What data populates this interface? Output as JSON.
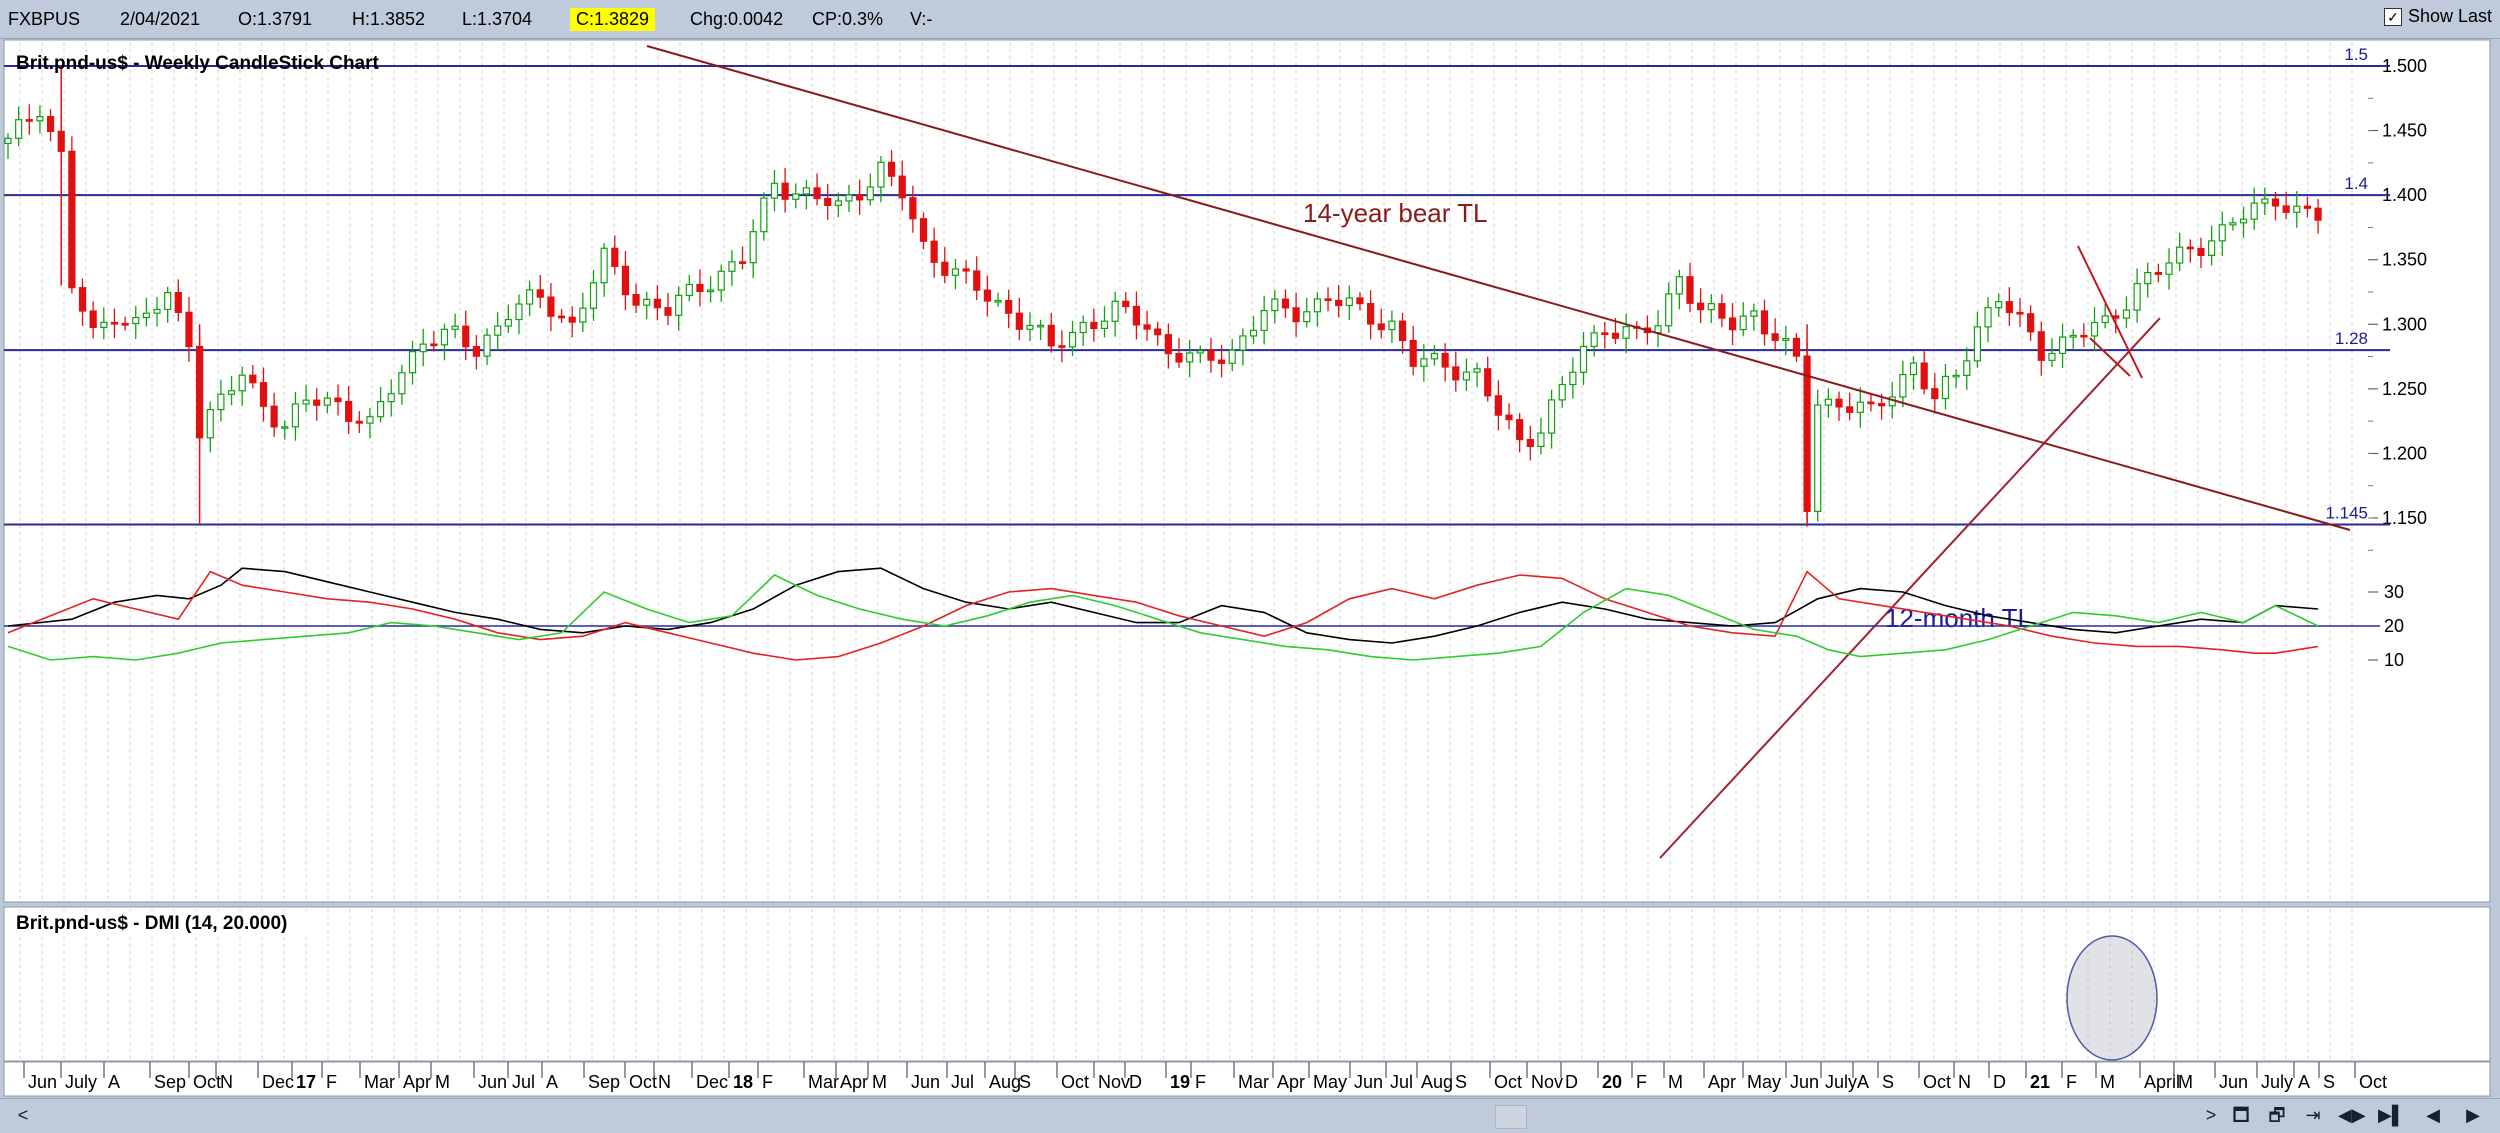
{
  "header": {
    "symbol": "FXBPUS",
    "date": "2/04/2021",
    "open": "O:1.3791",
    "high": "H:1.3852",
    "low": "L:1.3704",
    "close": "C:1.3829",
    "change": "Chg:0.0042",
    "change_pct": "CP:0.3%",
    "volume": "V:-",
    "show_last_label": "Show Last",
    "show_last_checked": true
  },
  "chart_data": [
    {
      "type": "candlestick",
      "title": "Brit.pnd-us$ - Weekly CandleStick Chart",
      "ylim": [
        1.115,
        1.53
      ],
      "yticks": [
        "1.500",
        "1.450",
        "1.400",
        "1.350",
        "1.300",
        "1.250",
        "1.200",
        "1.150"
      ],
      "x_labels": [
        "Jun",
        "July",
        "A",
        "Sep",
        "Oct",
        "N",
        "Dec",
        "17",
        "F",
        "Mar",
        "Apr",
        "M",
        "Jun",
        "Jul",
        "A",
        "Sep",
        "Oct",
        "N",
        "Dec",
        "18",
        "F",
        "Mar",
        "Apr",
        "M",
        "Jun",
        "Jul",
        "Aug",
        "S",
        "Oct",
        "Nov",
        "D",
        "19",
        "F",
        "Mar",
        "Apr",
        "May",
        "Jun",
        "Jul",
        "Aug",
        "S",
        "Oct",
        "Nov",
        "D",
        "20",
        "F",
        "M",
        "Apr",
        "May",
        "Jun",
        "July",
        "A",
        "S",
        "Oct",
        "N",
        "D",
        "21",
        "F",
        "M",
        "April",
        "M",
        "Jun",
        "July",
        "A",
        "S",
        "Oct"
      ],
      "bold_labels": [
        "17",
        "18",
        "19",
        "20",
        "21"
      ],
      "horizontal_lines": [
        {
          "value": 1.5,
          "label": "1.5"
        },
        {
          "value": 1.4,
          "label": "1.4"
        },
        {
          "value": 1.28,
          "label": "1.28"
        },
        {
          "value": 1.145,
          "label": "1.145"
        }
      ],
      "annotations": [
        {
          "text": "14-year bear TL",
          "color": "#8b1a1a"
        },
        {
          "text": "12-month TL",
          "color": "#1a1a9a"
        }
      ],
      "close_path": [
        [
          0,
          1.44
        ],
        [
          3,
          1.47
        ],
        [
          5,
          1.43
        ],
        [
          6,
          1.33
        ],
        [
          8,
          1.29
        ],
        [
          10,
          1.31
        ],
        [
          12,
          1.3
        ],
        [
          15,
          1.32
        ],
        [
          17,
          1.29
        ],
        [
          18,
          1.22
        ],
        [
          20,
          1.24
        ],
        [
          22,
          1.26
        ],
        [
          24,
          1.24
        ],
        [
          26,
          1.22
        ],
        [
          28,
          1.24
        ],
        [
          31,
          1.24
        ],
        [
          34,
          1.22
        ],
        [
          36,
          1.25
        ],
        [
          39,
          1.29
        ],
        [
          42,
          1.29
        ],
        [
          44,
          1.28
        ],
        [
          47,
          1.31
        ],
        [
          50,
          1.32
        ],
        [
          53,
          1.3
        ],
        [
          56,
          1.35
        ],
        [
          59,
          1.32
        ],
        [
          62,
          1.31
        ],
        [
          65,
          1.33
        ],
        [
          69,
          1.35
        ],
        [
          72,
          1.41
        ],
        [
          75,
          1.4
        ],
        [
          78,
          1.39
        ],
        [
          82,
          1.42
        ],
        [
          84,
          1.4
        ],
        [
          86,
          1.36
        ],
        [
          89,
          1.34
        ],
        [
          92,
          1.32
        ],
        [
          96,
          1.3
        ],
        [
          98,
          1.28
        ],
        [
          101,
          1.3
        ],
        [
          104,
          1.31
        ],
        [
          107,
          1.3
        ],
        [
          109,
          1.28
        ],
        [
          112,
          1.27
        ],
        [
          115,
          1.28
        ],
        [
          118,
          1.31
        ],
        [
          121,
          1.31
        ],
        [
          124,
          1.32
        ],
        [
          127,
          1.31
        ],
        [
          130,
          1.3
        ],
        [
          132,
          1.27
        ],
        [
          135,
          1.27
        ],
        [
          138,
          1.26
        ],
        [
          140,
          1.23
        ],
        [
          142,
          1.21
        ],
        [
          144,
          1.22
        ],
        [
          146,
          1.25
        ],
        [
          148,
          1.28
        ],
        [
          150,
          1.3
        ],
        [
          153,
          1.29
        ],
        [
          155,
          1.3
        ],
        [
          157,
          1.34
        ],
        [
          159,
          1.31
        ],
        [
          162,
          1.3
        ],
        [
          164,
          1.31
        ],
        [
          166,
          1.29
        ],
        [
          168,
          1.27
        ],
        [
          169,
          1.16
        ],
        [
          170,
          1.24
        ],
        [
          172,
          1.24
        ],
        [
          175,
          1.23
        ],
        [
          177,
          1.25
        ],
        [
          179,
          1.27
        ],
        [
          181,
          1.24
        ],
        [
          183,
          1.26
        ],
        [
          185,
          1.3
        ],
        [
          187,
          1.32
        ],
        [
          189,
          1.3
        ],
        [
          191,
          1.28
        ],
        [
          194,
          1.29
        ],
        [
          197,
          1.3
        ],
        [
          200,
          1.33
        ],
        [
          202,
          1.34
        ],
        [
          205,
          1.36
        ],
        [
          208,
          1.37
        ],
        [
          211,
          1.39
        ],
        [
          213,
          1.4
        ],
        [
          215,
          1.385
        ],
        [
          217,
          1.383
        ]
      ]
    },
    {
      "type": "line",
      "title": "Brit.pnd-us$ - DMI (14, 20.000)",
      "ylim": [
        5,
        37
      ],
      "yticks": [
        "30",
        "20",
        "10"
      ],
      "reference_line": 20,
      "series": [
        {
          "color": "#000000",
          "points": [
            [
              0,
              20
            ],
            [
              6,
              22
            ],
            [
              10,
              27
            ],
            [
              14,
              29
            ],
            [
              17,
              28
            ],
            [
              20,
              32
            ],
            [
              22,
              37
            ],
            [
              26,
              36
            ],
            [
              30,
              33
            ],
            [
              34,
              30
            ],
            [
              38,
              27
            ],
            [
              42,
              24
            ],
            [
              46,
              22
            ],
            [
              50,
              19
            ],
            [
              54,
              18
            ],
            [
              58,
              20
            ],
            [
              62,
              19
            ],
            [
              66,
              21
            ],
            [
              70,
              25
            ],
            [
              74,
              32
            ],
            [
              78,
              36
            ],
            [
              82,
              38
            ],
            [
              86,
              31
            ],
            [
              90,
              27
            ],
            [
              94,
              25
            ],
            [
              98,
              27
            ],
            [
              102,
              24
            ],
            [
              106,
              21
            ],
            [
              110,
              21
            ],
            [
              114,
              26
            ],
            [
              118,
              24
            ],
            [
              122,
              18
            ],
            [
              126,
              16
            ],
            [
              130,
              15
            ],
            [
              134,
              17
            ],
            [
              138,
              20
            ],
            [
              142,
              24
            ],
            [
              146,
              27
            ],
            [
              150,
              25
            ],
            [
              154,
              22
            ],
            [
              158,
              21
            ],
            [
              162,
              20
            ],
            [
              166,
              21
            ],
            [
              170,
              28
            ],
            [
              174,
              31
            ],
            [
              178,
              30
            ],
            [
              182,
              26
            ],
            [
              186,
              23
            ],
            [
              190,
              21
            ],
            [
              194,
              19
            ],
            [
              198,
              18
            ],
            [
              202,
              20
            ],
            [
              206,
              22
            ],
            [
              210,
              21
            ],
            [
              213,
              26
            ],
            [
              217,
              25
            ]
          ]
        },
        {
          "color": "#e32222",
          "points": [
            [
              0,
              18
            ],
            [
              4,
              23
            ],
            [
              8,
              28
            ],
            [
              12,
              25
            ],
            [
              16,
              22
            ],
            [
              19,
              36
            ],
            [
              22,
              32
            ],
            [
              26,
              30
            ],
            [
              30,
              28
            ],
            [
              34,
              27
            ],
            [
              38,
              25
            ],
            [
              42,
              22
            ],
            [
              46,
              18
            ],
            [
              50,
              16
            ],
            [
              54,
              17
            ],
            [
              58,
              21
            ],
            [
              62,
              18
            ],
            [
              66,
              15
            ],
            [
              70,
              12
            ],
            [
              74,
              10
            ],
            [
              78,
              11
            ],
            [
              82,
              15
            ],
            [
              86,
              20
            ],
            [
              90,
              26
            ],
            [
              94,
              30
            ],
            [
              98,
              31
            ],
            [
              102,
              29
            ],
            [
              106,
              27
            ],
            [
              110,
              23
            ],
            [
              114,
              20
            ],
            [
              118,
              17
            ],
            [
              122,
              21
            ],
            [
              126,
              28
            ],
            [
              130,
              31
            ],
            [
              134,
              28
            ],
            [
              138,
              32
            ],
            [
              142,
              35
            ],
            [
              146,
              34
            ],
            [
              150,
              28
            ],
            [
              154,
              24
            ],
            [
              158,
              20
            ],
            [
              162,
              18
            ],
            [
              166,
              17
            ],
            [
              169,
              36
            ],
            [
              172,
              28
            ],
            [
              176,
              26
            ],
            [
              180,
              24
            ],
            [
              184,
              22
            ],
            [
              188,
              20
            ],
            [
              192,
              17
            ],
            [
              196,
              15
            ],
            [
              200,
              14
            ],
            [
              204,
              14
            ],
            [
              208,
              13
            ],
            [
              211,
              12
            ],
            [
              213,
              12
            ],
            [
              217,
              14
            ]
          ]
        },
        {
          "color": "#2ecc2e",
          "points": [
            [
              0,
              14
            ],
            [
              4,
              10
            ],
            [
              8,
              11
            ],
            [
              12,
              10
            ],
            [
              16,
              12
            ],
            [
              20,
              15
            ],
            [
              24,
              16
            ],
            [
              28,
              17
            ],
            [
              32,
              18
            ],
            [
              36,
              21
            ],
            [
              40,
              20
            ],
            [
              44,
              18
            ],
            [
              48,
              16
            ],
            [
              52,
              18
            ],
            [
              56,
              30
            ],
            [
              60,
              25
            ],
            [
              64,
              21
            ],
            [
              68,
              23
            ],
            [
              72,
              35
            ],
            [
              76,
              29
            ],
            [
              80,
              25
            ],
            [
              84,
              22
            ],
            [
              88,
              20
            ],
            [
              92,
              23
            ],
            [
              96,
              27
            ],
            [
              100,
              29
            ],
            [
              104,
              26
            ],
            [
              108,
              22
            ],
            [
              112,
              18
            ],
            [
              116,
              16
            ],
            [
              120,
              14
            ],
            [
              124,
              13
            ],
            [
              128,
              11
            ],
            [
              132,
              10
            ],
            [
              136,
              11
            ],
            [
              140,
              12
            ],
            [
              144,
              14
            ],
            [
              148,
              24
            ],
            [
              152,
              31
            ],
            [
              156,
              29
            ],
            [
              160,
              24
            ],
            [
              164,
              19
            ],
            [
              168,
              17
            ],
            [
              171,
              13
            ],
            [
              174,
              11
            ],
            [
              178,
              12
            ],
            [
              182,
              13
            ],
            [
              186,
              16
            ],
            [
              190,
              20
            ],
            [
              194,
              24
            ],
            [
              198,
              23
            ],
            [
              202,
              21
            ],
            [
              206,
              24
            ],
            [
              210,
              21
            ],
            [
              213,
              26
            ],
            [
              217,
              20
            ]
          ]
        }
      ]
    }
  ],
  "nav": {
    "left_arrow": "<",
    "right_arrow": ">",
    "buttons": [
      "zoom-in",
      "zoom-out",
      "scroll-end",
      "first",
      "last",
      "prev",
      "next"
    ]
  }
}
